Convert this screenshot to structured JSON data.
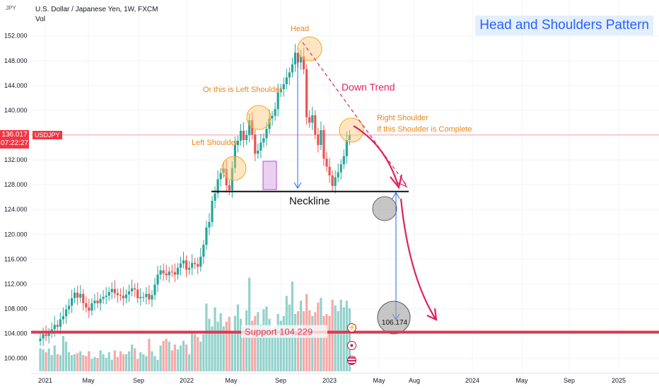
{
  "header": {
    "instrument": "U.S. Dollar / Japanese Yen, 1W, FXCM",
    "vol_label": "Vol",
    "currency": "JPY"
  },
  "pattern_title": "Head and Shoulders Pattern",
  "last_price": {
    "value": "136.017",
    "countdown": "07:22:27",
    "symbol": "USDJPY"
  },
  "colors": {
    "up": "#26a69a",
    "down": "#ef5350",
    "annotation_orange": "#e8861c",
    "annotation_red": "#e0245e",
    "support_line": "#e0384f",
    "arrow_blue": "#2962ff",
    "title_text": "#2962ff"
  },
  "annotations": {
    "head": "Head",
    "down_trend": "Down Trend",
    "left_shoulder_alt": "Or this is Left Shoulder",
    "left_shoulder": "Left Shoulder",
    "right_shoulder_1": "Right Shoulder",
    "right_shoulder_2": "If this Shoulder is Complete",
    "neckline": "Neckline",
    "support": "Support   104.229",
    "target": "106.174"
  },
  "icons": [
    "lightning-icon",
    "record-icon",
    "us-flag-icon"
  ],
  "chart_data": {
    "type": "candlestick",
    "title": "U.S. Dollar / Japanese Yen, 1W, FXCM",
    "ylabel": "JPY",
    "y_ticks": [
      100,
      104,
      108,
      112,
      116,
      120,
      124,
      128,
      132,
      136,
      140,
      144,
      148,
      152
    ],
    "ylim": [
      97,
      155.5
    ],
    "x_ticks": [
      "2021",
      "May",
      "Sep",
      "2022",
      "May",
      "Sep",
      "2023",
      "May",
      "Aug",
      "2024",
      "May",
      "Sep",
      "2025"
    ],
    "grid": true,
    "series_price_weekly_close": [
      103.2,
      103.9,
      103.6,
      104.1,
      104.7,
      105.4,
      105.1,
      106.3,
      106.8,
      107.9,
      108.5,
      109.7,
      110.6,
      109.8,
      110.4,
      108.9,
      108.2,
      107.7,
      108.9,
      109.3,
      108.9,
      109.6,
      109.9,
      110.1,
      110.7,
      111.2,
      110.5,
      110.2,
      110.1,
      109.7,
      110.3,
      110.8,
      111.3,
      111.1,
      109.7,
      109.9,
      109.9,
      110.4,
      109.5,
      110.2,
      111.9,
      113.5,
      114.2,
      113.7,
      113.4,
      114.0,
      113.9,
      113.5,
      114.6,
      115.3,
      115.8,
      114.3,
      114.6,
      115.4,
      115.2,
      114.8,
      116.4,
      118.3,
      121.1,
      122.0,
      125.4,
      126.6,
      128.9,
      129.9,
      130.6,
      127.9,
      127.1,
      130.7,
      134.4,
      135.1,
      136.7,
      135.2,
      136.0,
      138.4,
      136.1,
      133.0,
      133.5,
      134.8,
      135.5,
      137.0,
      138.7,
      139.1,
      140.2,
      142.9,
      143.4,
      144.2,
      145.3,
      146.1,
      147.4,
      149.3,
      147.7,
      148.7,
      146.6,
      138.9,
      138.0,
      139.2,
      136.1,
      134.4,
      136.8,
      132.2,
      130.9,
      129.5,
      127.8,
      129.2,
      130.0,
      131.3,
      132.6,
      135.2,
      136.0
    ],
    "series_volume_relative": [
      0.24,
      0.23,
      0.2,
      0.24,
      0.17,
      0.27,
      0.18,
      0.17,
      0.37,
      0.31,
      0.2,
      0.17,
      0.18,
      0.19,
      0.21,
      0.17,
      0.16,
      0.21,
      0.13,
      0.15,
      0.14,
      0.22,
      0.18,
      0.14,
      0.2,
      0.12,
      0.22,
      0.15,
      0.21,
      0.18,
      0.18,
      0.21,
      0.28,
      0.24,
      0.13,
      0.2,
      0.18,
      0.16,
      0.34,
      0.21,
      0.16,
      0.12,
      0.27,
      0.32,
      0.34,
      0.31,
      0.22,
      0.28,
      0.23,
      0.27,
      0.32,
      0.28,
      0.18,
      0.42,
      0.39,
      0.36,
      0.31,
      0.39,
      0.71,
      0.55,
      0.47,
      0.67,
      0.52,
      0.61,
      0.47,
      0.52,
      0.57,
      0.42,
      0.58,
      0.7,
      0.55,
      0.47,
      0.64,
      0.98,
      0.53,
      0.58,
      0.62,
      0.49,
      0.65,
      0.68,
      0.55,
      0.42,
      0.47,
      0.6,
      0.53,
      0.58,
      0.79,
      0.7,
      0.94,
      0.6,
      0.63,
      0.74,
      0.63,
      0.81,
      0.64,
      0.58,
      0.62,
      0.72,
      0.77,
      0.58,
      0.6,
      0.58,
      0.75,
      0.69,
      0.63,
      0.75,
      0.67,
      0.74,
      0.66
    ],
    "neckline_level": 126.9,
    "support_level": 104.229,
    "target_level": 106.174,
    "head_level": 151.9,
    "left_shoulder_level": 131.3,
    "alt_left_shoulder_level": 139.3,
    "right_shoulder_level": 136.0
  }
}
